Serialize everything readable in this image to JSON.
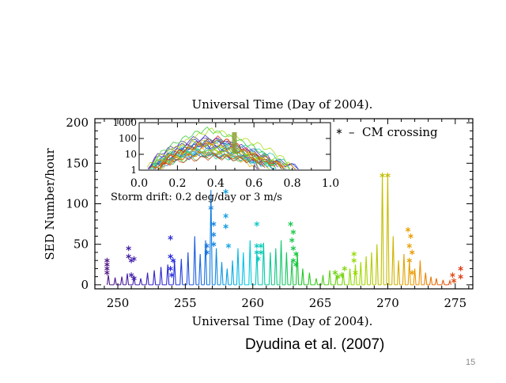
{
  "slide": {
    "citation": "Dyudina et al. (2007)",
    "page_number": "15"
  },
  "chart_data": [
    {
      "type": "line",
      "title": "Universal Time (Day of 2004).",
      "xlabel": "Universal Time (Day of 2004).",
      "ylabel": "SED Number/hour",
      "xlim": [
        248.3,
        276.3
      ],
      "ylim": [
        -5,
        205
      ],
      "xticks": [
        "250",
        "255",
        "260",
        "265",
        "270",
        "275"
      ],
      "yticks": [
        "0",
        "50",
        "100",
        "150",
        "200"
      ],
      "legend": {
        "label": "CM crossing",
        "marker": "asterisk",
        "position": "top-right"
      },
      "colormap": "rainbow (purple at start of interval to red at end)",
      "series": [
        {
          "peaks": [
            {
              "x": 249.3,
              "y": 12
            },
            {
              "x": 249.8,
              "y": 9
            },
            {
              "x": 250.3,
              "y": 10
            },
            {
              "x": 250.7,
              "y": 14
            },
            {
              "x": 251.2,
              "y": 11
            },
            {
              "x": 251.7,
              "y": 8
            },
            {
              "x": 252.2,
              "y": 15
            },
            {
              "x": 252.7,
              "y": 18
            },
            {
              "x": 253.2,
              "y": 22
            },
            {
              "x": 253.7,
              "y": 25
            },
            {
              "x": 254.2,
              "y": 30
            },
            {
              "x": 254.7,
              "y": 32
            },
            {
              "x": 255.2,
              "y": 40
            },
            {
              "x": 255.7,
              "y": 60
            },
            {
              "x": 256.1,
              "y": 38
            },
            {
              "x": 256.5,
              "y": 55
            },
            {
              "x": 256.9,
              "y": 117
            },
            {
              "x": 257.3,
              "y": 45
            },
            {
              "x": 257.7,
              "y": 28
            },
            {
              "x": 258.1,
              "y": 20
            },
            {
              "x": 258.5,
              "y": 30
            },
            {
              "x": 258.9,
              "y": 45
            },
            {
              "x": 259.3,
              "y": 40
            },
            {
              "x": 259.8,
              "y": 55
            },
            {
              "x": 260.3,
              "y": 42
            },
            {
              "x": 260.8,
              "y": 52
            },
            {
              "x": 261.3,
              "y": 40
            },
            {
              "x": 261.7,
              "y": 45
            },
            {
              "x": 262.1,
              "y": 55
            },
            {
              "x": 262.5,
              "y": 40
            },
            {
              "x": 262.9,
              "y": 30
            },
            {
              "x": 263.3,
              "y": 40
            },
            {
              "x": 263.7,
              "y": 20
            },
            {
              "x": 264.2,
              "y": 15
            },
            {
              "x": 264.7,
              "y": 8
            },
            {
              "x": 265.2,
              "y": 12
            },
            {
              "x": 265.7,
              "y": 18
            },
            {
              "x": 266.2,
              "y": 12
            },
            {
              "x": 266.7,
              "y": 15
            },
            {
              "x": 267.2,
              "y": 20
            },
            {
              "x": 267.6,
              "y": 25
            },
            {
              "x": 268.0,
              "y": 28
            },
            {
              "x": 268.4,
              "y": 35
            },
            {
              "x": 268.8,
              "y": 40
            },
            {
              "x": 269.2,
              "y": 50
            },
            {
              "x": 269.6,
              "y": 138
            },
            {
              "x": 270.0,
              "y": 138
            },
            {
              "x": 270.4,
              "y": 60
            },
            {
              "x": 270.8,
              "y": 30
            },
            {
              "x": 271.2,
              "y": 38
            },
            {
              "x": 271.6,
              "y": 30
            },
            {
              "x": 272.0,
              "y": 20
            },
            {
              "x": 272.4,
              "y": 30
            },
            {
              "x": 272.8,
              "y": 15
            },
            {
              "x": 273.2,
              "y": 10
            },
            {
              "x": 273.6,
              "y": 8
            },
            {
              "x": 274.1,
              "y": 6
            },
            {
              "x": 274.6,
              "y": 5
            }
          ]
        }
      ],
      "cm_crossings": [
        {
          "x": 249.2,
          "y": 30
        },
        {
          "x": 249.2,
          "y": 25
        },
        {
          "x": 249.2,
          "y": 20
        },
        {
          "x": 249.2,
          "y": 15
        },
        {
          "x": 250.8,
          "y": 45
        },
        {
          "x": 250.8,
          "y": 35
        },
        {
          "x": 251.0,
          "y": 30
        },
        {
          "x": 251.2,
          "y": 32
        },
        {
          "x": 251.0,
          "y": 12
        },
        {
          "x": 251.2,
          "y": 8
        },
        {
          "x": 253.9,
          "y": 58
        },
        {
          "x": 253.9,
          "y": 35
        },
        {
          "x": 254.1,
          "y": 30
        },
        {
          "x": 253.9,
          "y": 20
        },
        {
          "x": 254.0,
          "y": 12
        },
        {
          "x": 256.6,
          "y": 48
        },
        {
          "x": 256.6,
          "y": 40
        },
        {
          "x": 256.9,
          "y": 95
        },
        {
          "x": 257.1,
          "y": 75
        },
        {
          "x": 257.1,
          "y": 62
        },
        {
          "x": 257.1,
          "y": 50
        },
        {
          "x": 258.0,
          "y": 115
        },
        {
          "x": 258.0,
          "y": 85
        },
        {
          "x": 258.0,
          "y": 72
        },
        {
          "x": 258.2,
          "y": 48
        },
        {
          "x": 260.3,
          "y": 75
        },
        {
          "x": 260.3,
          "y": 48
        },
        {
          "x": 260.3,
          "y": 40
        },
        {
          "x": 260.4,
          "y": 32
        },
        {
          "x": 260.6,
          "y": 48
        },
        {
          "x": 260.6,
          "y": 40
        },
        {
          "x": 262.8,
          "y": 75
        },
        {
          "x": 263.0,
          "y": 65
        },
        {
          "x": 262.9,
          "y": 55
        },
        {
          "x": 263.0,
          "y": 45
        },
        {
          "x": 263.2,
          "y": 38
        },
        {
          "x": 263.0,
          "y": 30
        },
        {
          "x": 263.2,
          "y": 25
        },
        {
          "x": 266.1,
          "y": 15
        },
        {
          "x": 266.3,
          "y": 10
        },
        {
          "x": 266.6,
          "y": 12
        },
        {
          "x": 266.8,
          "y": 20
        },
        {
          "x": 267.5,
          "y": 38
        },
        {
          "x": 267.5,
          "y": 30
        },
        {
          "x": 267.6,
          "y": 15
        },
        {
          "x": 269.6,
          "y": 135
        },
        {
          "x": 270.0,
          "y": 135
        },
        {
          "x": 271.5,
          "y": 68
        },
        {
          "x": 271.7,
          "y": 60
        },
        {
          "x": 271.6,
          "y": 48
        },
        {
          "x": 271.8,
          "y": 40
        },
        {
          "x": 271.6,
          "y": 30
        },
        {
          "x": 271.8,
          "y": 15
        },
        {
          "x": 274.8,
          "y": 12
        },
        {
          "x": 274.9,
          "y": 5
        },
        {
          "x": 275.4,
          "y": 20
        },
        {
          "x": 275.4,
          "y": 10
        }
      ]
    },
    {
      "type": "line",
      "xlim": [
        0,
        1
      ],
      "ylim_log": [
        1,
        1000
      ],
      "xticks": [
        "0.0",
        "0.2",
        "0.4",
        "0.6",
        "0.8",
        "1.0"
      ],
      "yticks": [
        "1000",
        "100",
        "10",
        "1"
      ],
      "xlabel": "Storm drift: 0.2 deg/day or 3 m/s",
      "series_count": 28,
      "description_values": {
        "peak_phase": 0.35,
        "active_phase_range": [
          0.05,
          0.85
        ],
        "cm_marker_phase": 0.5
      }
    }
  ]
}
